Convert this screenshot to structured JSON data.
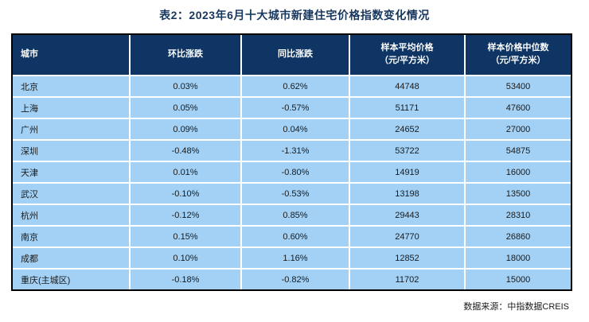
{
  "title": "表2：2023年6月十大城市新建住宅价格指数变化情况",
  "colors": {
    "title_text": "#17375E",
    "header_bg": "#0E3563",
    "header_text": "#FFFFFF",
    "row_bg": "#A3D1F5",
    "cell_divider": "#FFFFFF",
    "table_border": "#000000"
  },
  "table": {
    "headers": [
      {
        "line1": "城市",
        "line2": ""
      },
      {
        "line1": "环比涨跌",
        "line2": ""
      },
      {
        "line1": "同比涨跌",
        "line2": ""
      },
      {
        "line1": "样本平均价格",
        "line2": "（元/平方米）"
      },
      {
        "line1": "样本价格中位数",
        "line2": "（元/平方米）"
      }
    ],
    "rows": [
      {
        "city": "北京",
        "mom": "0.03%",
        "yoy": "0.62%",
        "avg_price": "44748",
        "median_price": "53400"
      },
      {
        "city": "上海",
        "mom": "0.05%",
        "yoy": "-0.57%",
        "avg_price": "51171",
        "median_price": "47600"
      },
      {
        "city": "广州",
        "mom": "0.09%",
        "yoy": "0.04%",
        "avg_price": "24652",
        "median_price": "27000"
      },
      {
        "city": "深圳",
        "mom": "-0.48%",
        "yoy": "-1.31%",
        "avg_price": "53722",
        "median_price": "54875"
      },
      {
        "city": "天津",
        "mom": "0.01%",
        "yoy": "-0.80%",
        "avg_price": "14919",
        "median_price": "16000"
      },
      {
        "city": "武汉",
        "mom": "-0.10%",
        "yoy": "-0.53%",
        "avg_price": "13198",
        "median_price": "13500"
      },
      {
        "city": "杭州",
        "mom": "-0.12%",
        "yoy": "0.85%",
        "avg_price": "29443",
        "median_price": "28310"
      },
      {
        "city": "南京",
        "mom": "0.15%",
        "yoy": "0.60%",
        "avg_price": "24770",
        "median_price": "26860"
      },
      {
        "city": "成都",
        "mom": "0.10%",
        "yoy": "1.16%",
        "avg_price": "12852",
        "median_price": "18000"
      },
      {
        "city": "重庆(主城区)",
        "mom": "-0.18%",
        "yoy": "-0.82%",
        "avg_price": "11702",
        "median_price": "15000"
      }
    ]
  },
  "footer": "数据来源：中指数据CREIS"
}
